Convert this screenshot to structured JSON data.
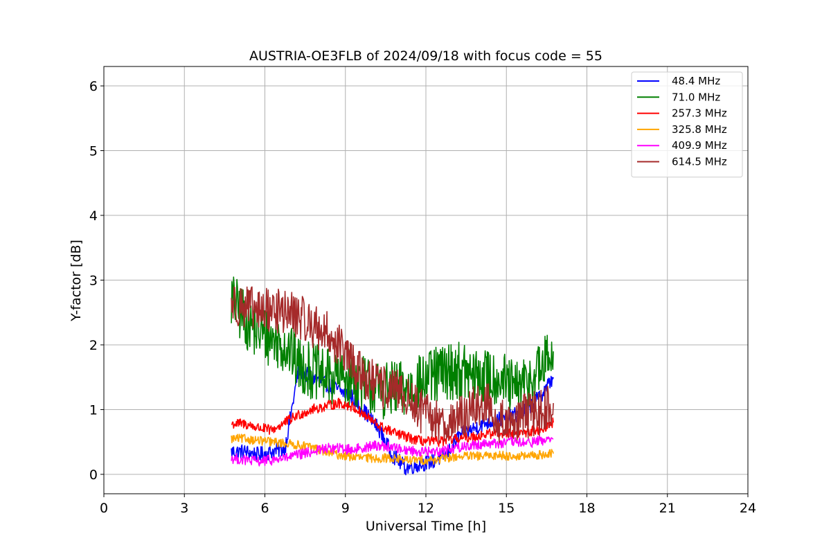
{
  "chart_data": {
    "type": "line",
    "title": "AUSTRIA-OE3FLB of 2024/09/18 with focus code = 55",
    "xlabel": "Universal Time [h]",
    "ylabel": "Y-factor [dB]",
    "xlim": [
      0,
      24
    ],
    "ylim": [
      -0.3,
      6.3
    ],
    "xticks": [
      0,
      3,
      6,
      9,
      12,
      15,
      18,
      21,
      24
    ],
    "yticks": [
      0,
      1,
      2,
      3,
      4,
      5,
      6
    ],
    "grid": true,
    "legend_position": "top-right",
    "series": [
      {
        "name": " 48.4 MHz",
        "color": "#0000ff",
        "x": [
          4.75,
          5.25,
          5.75,
          6.25,
          6.75,
          7.25,
          7.75,
          8.25,
          8.75,
          9.25,
          9.75,
          10.25,
          10.75,
          11.25,
          11.75,
          12.25,
          12.75,
          13.25,
          13.75,
          14.25,
          14.75,
          15.25,
          15.75,
          16.25,
          16.75
        ],
        "values": [
          0.35,
          0.35,
          0.3,
          0.35,
          0.4,
          1.6,
          1.5,
          1.4,
          1.3,
          1.2,
          0.95,
          0.7,
          0.3,
          0.1,
          0.15,
          0.2,
          0.3,
          0.6,
          0.7,
          0.8,
          0.85,
          0.9,
          1.0,
          1.2,
          1.5
        ]
      },
      {
        "name": " 71.0 MHz",
        "color": "#008000",
        "x": [
          4.75,
          5.25,
          5.75,
          6.25,
          6.75,
          7.25,
          7.75,
          8.25,
          8.75,
          9.25,
          9.75,
          10.25,
          10.75,
          11.25,
          11.75,
          12.25,
          12.75,
          13.25,
          13.75,
          14.25,
          14.75,
          15.25,
          15.75,
          16.25,
          16.75
        ],
        "values": [
          2.7,
          2.4,
          2.2,
          2.1,
          2.0,
          1.7,
          1.6,
          1.5,
          1.5,
          1.5,
          1.4,
          1.3,
          1.3,
          1.3,
          1.4,
          1.5,
          1.6,
          1.6,
          1.5,
          1.5,
          1.5,
          1.3,
          1.4,
          1.6,
          1.9
        ]
      },
      {
        "name": "257.3 MHz",
        "color": "#ff0000",
        "x": [
          4.75,
          5.25,
          5.75,
          6.25,
          6.75,
          7.25,
          7.75,
          8.25,
          8.75,
          9.25,
          9.75,
          10.25,
          10.75,
          11.25,
          11.75,
          12.25,
          12.75,
          13.25,
          13.75,
          14.25,
          14.75,
          15.25,
          15.75,
          16.25,
          16.75
        ],
        "values": [
          0.78,
          0.78,
          0.72,
          0.68,
          0.8,
          0.92,
          1.0,
          1.05,
          1.1,
          1.05,
          0.9,
          0.75,
          0.65,
          0.58,
          0.52,
          0.5,
          0.52,
          0.55,
          0.58,
          0.62,
          0.65,
          0.62,
          0.65,
          0.7,
          0.8
        ]
      },
      {
        "name": "325.8 MHz",
        "color": "#ffa500",
        "x": [
          4.75,
          5.25,
          5.75,
          6.25,
          6.75,
          7.25,
          7.75,
          8.25,
          8.75,
          9.25,
          9.75,
          10.25,
          10.75,
          11.25,
          11.75,
          12.25,
          12.75,
          13.25,
          13.75,
          14.25,
          14.75,
          15.25,
          15.75,
          16.25,
          16.75
        ],
        "values": [
          0.55,
          0.55,
          0.52,
          0.5,
          0.48,
          0.45,
          0.42,
          0.35,
          0.3,
          0.27,
          0.25,
          0.25,
          0.25,
          0.22,
          0.22,
          0.22,
          0.25,
          0.28,
          0.28,
          0.28,
          0.3,
          0.28,
          0.28,
          0.3,
          0.32
        ]
      },
      {
        "name": "409.9 MHz",
        "color": "#ff00ff",
        "x": [
          4.75,
          5.25,
          5.75,
          6.25,
          6.75,
          7.25,
          7.75,
          8.25,
          8.75,
          9.25,
          9.75,
          10.25,
          10.75,
          11.25,
          11.75,
          12.25,
          12.75,
          13.25,
          13.75,
          14.25,
          14.75,
          15.25,
          15.75,
          16.25,
          16.75
        ],
        "values": [
          0.25,
          0.22,
          0.2,
          0.22,
          0.25,
          0.3,
          0.35,
          0.4,
          0.4,
          0.38,
          0.42,
          0.45,
          0.42,
          0.38,
          0.35,
          0.35,
          0.38,
          0.42,
          0.45,
          0.48,
          0.48,
          0.5,
          0.48,
          0.52,
          0.55
        ]
      },
      {
        "name": "614.5 MHz",
        "color": "#a52a2a",
        "x": [
          4.75,
          5.25,
          5.75,
          6.25,
          6.75,
          7.25,
          7.75,
          8.25,
          8.75,
          9.25,
          9.75,
          10.25,
          10.75,
          11.25,
          11.75,
          12.25,
          12.75,
          13.25,
          13.75,
          14.25,
          14.75,
          15.25,
          15.75,
          16.25,
          16.75
        ],
        "values": [
          2.65,
          2.6,
          2.5,
          2.55,
          2.5,
          2.45,
          2.3,
          2.2,
          2.0,
          1.7,
          1.5,
          1.35,
          1.3,
          1.2,
          1.0,
          0.85,
          0.8,
          0.85,
          1.0,
          1.1,
          0.8,
          0.85,
          0.9,
          0.95,
          1.1
        ]
      }
    ]
  }
}
